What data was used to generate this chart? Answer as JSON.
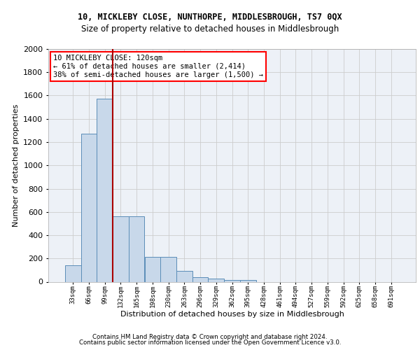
{
  "title1": "10, MICKLEBY CLOSE, NUNTHORPE, MIDDLESBROUGH, TS7 0QX",
  "title2": "Size of property relative to detached houses in Middlesbrough",
  "xlabel": "Distribution of detached houses by size in Middlesbrough",
  "ylabel": "Number of detached properties",
  "footer1": "Contains HM Land Registry data © Crown copyright and database right 2024.",
  "footer2": "Contains public sector information licensed under the Open Government Licence v3.0.",
  "annotation_title": "10 MICKLEBY CLOSE: 120sqm",
  "annotation_line1": "← 61% of detached houses are smaller (2,414)",
  "annotation_line2": "38% of semi-detached houses are larger (1,500) →",
  "bar_color": "#c8d8ea",
  "bar_edge_color": "#5b8db8",
  "vline_color": "#aa0000",
  "vline_x": 2.5,
  "categories": [
    "33sqm",
    "66sqm",
    "99sqm",
    "132sqm",
    "165sqm",
    "198sqm",
    "230sqm",
    "263sqm",
    "296sqm",
    "329sqm",
    "362sqm",
    "395sqm",
    "428sqm",
    "461sqm",
    "494sqm",
    "527sqm",
    "559sqm",
    "592sqm",
    "625sqm",
    "658sqm",
    "691sqm"
  ],
  "values": [
    140,
    1275,
    1575,
    565,
    565,
    215,
    215,
    95,
    40,
    25,
    15,
    15,
    0,
    0,
    0,
    0,
    0,
    0,
    0,
    0,
    0
  ],
  "ylim": [
    0,
    2000
  ],
  "yticks": [
    0,
    200,
    400,
    600,
    800,
    1000,
    1200,
    1400,
    1600,
    1800,
    2000
  ],
  "background_color": "#edf1f7",
  "grid_color": "#cccccc",
  "ann_fontsize": 7.5,
  "title1_fontsize": 8.5,
  "title2_fontsize": 8.5,
  "xlabel_fontsize": 8.0,
  "ylabel_fontsize": 8.0,
  "footer_fontsize": 6.2
}
